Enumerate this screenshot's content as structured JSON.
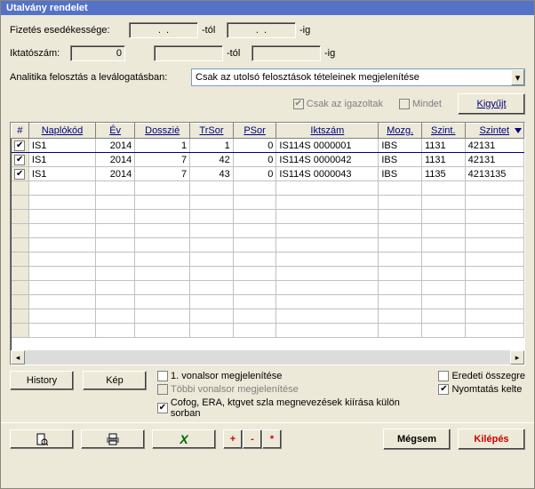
{
  "window": {
    "title": "Utalvány rendelet"
  },
  "form": {
    "pay_due_label": "Fizetés esedékessége:",
    "pay_from_value": ".  .",
    "pay_from_suffix": "-tól",
    "pay_to_value": ".  .",
    "pay_to_suffix": "-ig",
    "regnum_label": "Iktatószám:",
    "regnum_value": "0",
    "regnum_from_value": "",
    "regnum_from_suffix": "-tól",
    "regnum_to_value": "",
    "regnum_to_suffix": "-ig",
    "analytics_label": "Analitika felosztás a leválogatásban:",
    "analytics_combo": "Csak az utolsó felosztások tételeinek megjelenítése"
  },
  "filters": {
    "only_verified": "Csak az igazoltak",
    "only_verified_checked": "✔",
    "all_label": "Mindet",
    "gather_btn": "Kigyűjt"
  },
  "grid": {
    "cols": {
      "hash": "#",
      "naplokod": "Naplókód",
      "ev": "Év",
      "dosszie": "Dosszié",
      "trsor": "TrSor",
      "psor": "PSor",
      "iktszam": "Iktszám",
      "mozg": "Mozg.",
      "szint": "Szint.",
      "szintet": "Szintet"
    },
    "rows": [
      {
        "chk": "✔",
        "naplokod": "IS1",
        "ev": "2014",
        "dosszie": "1",
        "trsor": "1",
        "psor": "0",
        "iktszam": "IS114S 0000001",
        "mozg": "IBS",
        "szint": "1131",
        "szintet": "42131"
      },
      {
        "chk": "✔",
        "naplokod": "IS1",
        "ev": "2014",
        "dosszie": "7",
        "trsor": "42",
        "psor": "0",
        "iktszam": "IS114S 0000042",
        "mozg": "IBS",
        "szint": "1131",
        "szintet": "42131"
      },
      {
        "chk": "✔",
        "naplokod": "IS1",
        "ev": "2014",
        "dosszie": "7",
        "trsor": "43",
        "psor": "0",
        "iktszam": "IS114S 0000043",
        "mozg": "IBS",
        "szint": "1135",
        "szintet": "4213135"
      }
    ]
  },
  "options": {
    "history_btn": "History",
    "kep_btn": "Kép",
    "opt1": "1. vonalsor megjelenítése",
    "opt2": "Többi vonalsor megjelenítése",
    "opt3": "Cofog, ERA, ktgvet szla megnevezések kiírása külön sorban",
    "opt3_chk": "✔",
    "opt4": "Eredeti összegre",
    "opt5": "Nyomtatás kelte",
    "opt5_chk": "✔"
  },
  "toolbar": {
    "plus": "+",
    "minus": "-",
    "star": "*",
    "cancel": "Mégsem",
    "exit": "Kilépés"
  },
  "colors": {
    "titlebar_bg": "#5472c8",
    "link_color": "#000080",
    "bg": "#ece9d8",
    "red": "#cc0000"
  }
}
